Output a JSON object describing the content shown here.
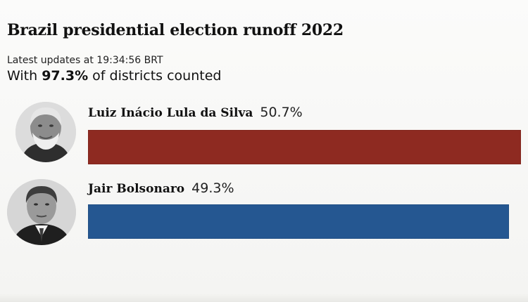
{
  "title": "Brazil presidential election runoff 2022",
  "updated": "Latest updates at 19:34:56 BRT",
  "counted_prefix": "With ",
  "counted_value": "97.3%",
  "counted_suffix": " of districts counted",
  "candidates": [
    {
      "name": "Luiz Inácio Lula da Silva",
      "percent_label": "50.7%",
      "share": 50.7,
      "bar_color": "#8e2a21",
      "photo": "lula-portrait"
    },
    {
      "name": "Jair Bolsonaro",
      "percent_label": "49.3%",
      "share": 49.3,
      "bar_color": "#255791",
      "photo": "bolsonaro-portrait"
    }
  ]
}
